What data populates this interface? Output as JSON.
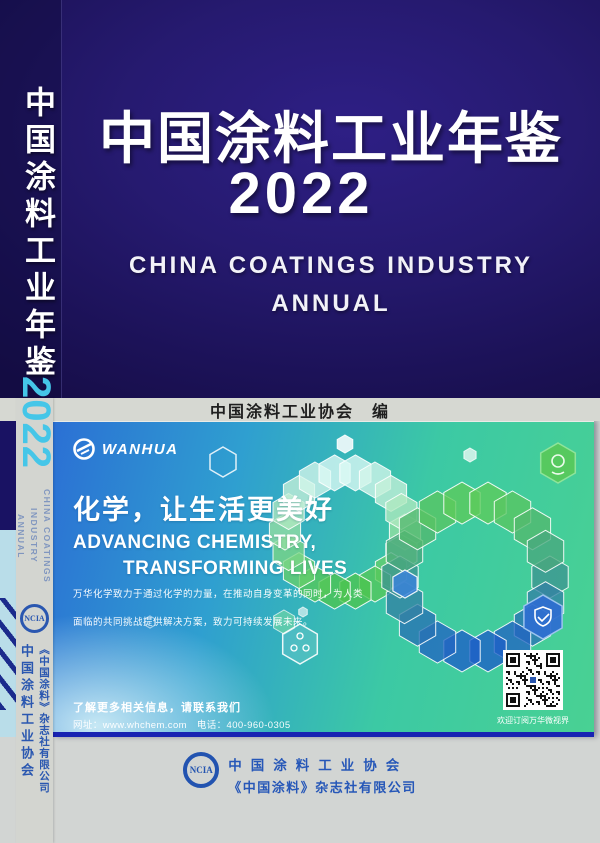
{
  "cover": {
    "title": "中国涂料工业年鉴",
    "year": "2022",
    "subtitle_line1": "CHINA COATINGS INDUSTRY",
    "subtitle_line2": "ANNUAL",
    "editor_line": "中国涂料工业协会　编"
  },
  "spine": {
    "title": "中国涂料工业年鉴",
    "year": "2022",
    "subtitle_line1": "CHINA COATINGS INDUSTRY",
    "subtitle_line2": "ANNUAL",
    "logo_text": "NCIA",
    "org": "中国涂料工业协会",
    "publisher": "《中国涂料》杂志社有限公司"
  },
  "ad": {
    "brand": "WANHUA",
    "headline": "化学，让生活更美好",
    "slogan_line1": "ADVANCING CHEMISTRY,",
    "slogan_line2": "TRANSFORMING LIVES",
    "body_line1": "万华化学致力于通过化学的力量，在推动自身变革的同时，为人类",
    "body_line2": "面临的共同挑战提供解决方案，致力可持续发展未来。",
    "contact_title": "了解更多相关信息，请联系我们",
    "contact_info": "网址：www.whchem.com　电话：400-960-0305",
    "qr_caption": "欢迎订阅万华微视界"
  },
  "footer": {
    "logo_text": "NCIA",
    "org": "中国涂料工业协会",
    "publisher": "《中国涂料》杂志社有限公司"
  },
  "colors": {
    "cover_indigo": "#241a6b",
    "spine_year_cyan": "#45c6e8",
    "association_blue": "#2253b0",
    "card_border_navy": "#1823b2",
    "card_blue": "#2b70d4",
    "card_green": "#49d193"
  }
}
